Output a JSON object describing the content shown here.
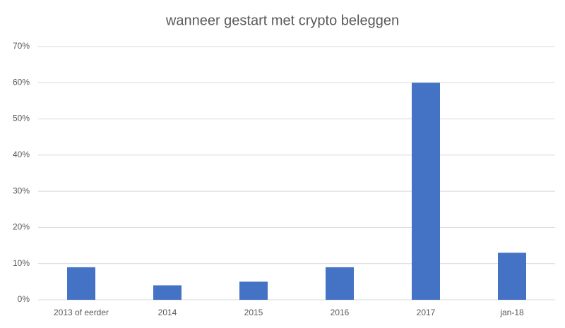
{
  "chart_data": {
    "type": "bar",
    "title": "wanneer gestart met crypto beleggen",
    "categories": [
      "2013 of eerder",
      "2014",
      "2015",
      "2016",
      "2017",
      "jan-18"
    ],
    "values": [
      9,
      4,
      5,
      9,
      60,
      13
    ],
    "color": "#4472c4",
    "ylim": [
      0,
      70
    ],
    "yticks": [
      {
        "value": 0,
        "label": "0%"
      },
      {
        "value": 10,
        "label": "10%"
      },
      {
        "value": 20,
        "label": "20%"
      },
      {
        "value": 30,
        "label": "30%"
      },
      {
        "value": 40,
        "label": "40%"
      },
      {
        "value": 50,
        "label": "50%"
      },
      {
        "value": 60,
        "label": "60%"
      },
      {
        "value": 70,
        "label": "70%"
      }
    ],
    "grid": true
  }
}
